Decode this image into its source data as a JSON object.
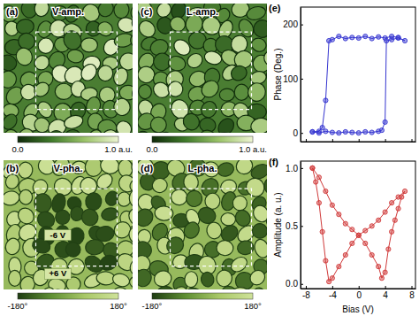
{
  "chart_data": [
    {
      "type": "image",
      "panel": "(a)",
      "title": "V-amp.",
      "colorbar": {
        "range": [
          0,
          1
        ],
        "ticks": [
          {
            "value": 0,
            "label": "0.0"
          },
          {
            "value": 1,
            "label": "1.0 a.u."
          }
        ],
        "colors": [
          "#0f2a0a",
          "#3f7a2a",
          "#9cc46a",
          "#eef5d2"
        ]
      }
    },
    {
      "type": "image",
      "panel": "(b)",
      "title": "V-pha.",
      "annotations": [
        "-6 V",
        "+6 V"
      ],
      "colorbar": {
        "range": [
          -180,
          180
        ],
        "ticks": [
          {
            "value": -180,
            "label": "-180°"
          },
          {
            "value": 180,
            "label": "180°"
          }
        ],
        "colors": [
          "#1e3c12",
          "#5f8f34",
          "#a9c868",
          "#cfe29a"
        ]
      }
    },
    {
      "type": "image",
      "panel": "(c)",
      "title": "L-amp.",
      "colorbar": {
        "range": [
          0,
          1
        ],
        "ticks": [
          {
            "value": 0,
            "label": "0.0"
          },
          {
            "value": 1,
            "label": "1.0 a.u."
          }
        ],
        "colors": [
          "#0f2a0a",
          "#3f7a2a",
          "#9cc46a",
          "#eef5d2"
        ]
      }
    },
    {
      "type": "image",
      "panel": "(d)",
      "title": "L-pha.",
      "colorbar": {
        "range": [
          -180,
          180
        ],
        "ticks": [
          {
            "value": -180,
            "label": "-180°"
          },
          {
            "value": 180,
            "label": "180°"
          }
        ],
        "colors": [
          "#1e3c12",
          "#5f8f34",
          "#a9c868",
          "#cfe29a"
        ]
      }
    },
    {
      "type": "line",
      "panel": "(e)",
      "y_label": "Phase (Deg.)",
      "color": "#3535d0",
      "marker": "circle",
      "x": [
        -7,
        -6,
        -5,
        -4,
        -3,
        -2,
        -1,
        0,
        1,
        2,
        3,
        3.5,
        4,
        4.2,
        5,
        6,
        7,
        6,
        5,
        4,
        3,
        2,
        1,
        0,
        -1,
        -2,
        -3,
        -4,
        -4.5,
        -5,
        -5.5,
        -6,
        -7
      ],
      "values": [
        2,
        0,
        3,
        1,
        0,
        2,
        1,
        0,
        2,
        1,
        3,
        5,
        20,
        170,
        172,
        175,
        170,
        176,
        178,
        175,
        177,
        174,
        178,
        175,
        176,
        174,
        178,
        172,
        170,
        60,
        10,
        3,
        2
      ],
      "xlim": [
        -8.8,
        8.6
      ],
      "xticks": [
        -8,
        -4,
        0,
        4,
        8
      ],
      "ylim": [
        -16,
        232
      ],
      "yticks": [
        0,
        100,
        200
      ],
      "tick_labels": "y"
    },
    {
      "type": "line",
      "panel": "(f)",
      "x_label": "Bias (V)",
      "y_label": "Amplitude (a. u.)",
      "color": "#d03a3a",
      "marker": "circle",
      "x": [
        -7,
        -6,
        -5,
        -4,
        -3,
        -2,
        -1,
        0,
        1,
        2,
        3,
        3.5,
        4,
        4.5,
        5,
        5.5,
        6,
        6.5,
        7,
        6,
        5,
        4,
        3,
        2,
        1,
        0,
        -1,
        -2,
        -3,
        -4,
        -4.5,
        -5,
        -5.5,
        -6,
        -6.5,
        -7
      ],
      "values": [
        1.0,
        0.92,
        0.8,
        0.68,
        0.6,
        0.52,
        0.47,
        0.42,
        0.35,
        0.25,
        0.15,
        0.05,
        0.1,
        0.3,
        0.45,
        0.55,
        0.65,
        0.75,
        0.8,
        0.75,
        0.7,
        0.62,
        0.55,
        0.5,
        0.46,
        0.42,
        0.35,
        0.25,
        0.15,
        0.05,
        0.02,
        0.2,
        0.45,
        0.7,
        0.88,
        1.0
      ],
      "xlim": [
        -8.8,
        8.6
      ],
      "xticks": [
        -8,
        -4,
        0,
        4,
        8
      ],
      "ylim": [
        -0.04,
        1.06
      ],
      "yticks": [
        {
          "value": 0,
          "label": "0.0"
        },
        0.5,
        {
          "value": 1,
          "label": "1.0"
        }
      ]
    }
  ]
}
